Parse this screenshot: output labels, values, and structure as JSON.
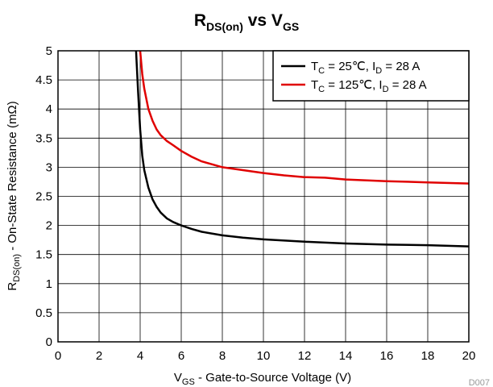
{
  "chart_data": {
    "type": "line",
    "title": {
      "main": "R",
      "main_sub": "DS(on)",
      "mid": " vs V",
      "mid_sub": "GS"
    },
    "xlabel": {
      "main": "V",
      "sub": "GS",
      "rest": " - Gate-to-Source Voltage (V)"
    },
    "ylabel": {
      "main": "R",
      "sub": "DS(on)",
      "rest": " - On-State Resistance (mΩ)"
    },
    "xlim": [
      0,
      20
    ],
    "ylim": [
      0,
      5
    ],
    "xticks": [
      "0",
      "2",
      "4",
      "6",
      "8",
      "10",
      "12",
      "14",
      "16",
      "18",
      "20"
    ],
    "yticks": [
      "0",
      "0.5",
      "1",
      "1.5",
      "2",
      "2.5",
      "3",
      "3.5",
      "4",
      "4.5",
      "5"
    ],
    "grid": true,
    "legend_position": "top-right",
    "figure_code": "D007",
    "series": [
      {
        "color": "#000000",
        "legend": {
          "t": "T",
          "t_sub": "C",
          "mid": " = 25℃, I",
          "i_sub": "D",
          "end": " = 28 A"
        },
        "x": [
          3.8,
          3.9,
          4.0,
          4.1,
          4.2,
          4.4,
          4.6,
          4.8,
          5.0,
          5.3,
          5.6,
          6.0,
          6.5,
          7.0,
          8.0,
          9.0,
          10.0,
          12.0,
          14.0,
          16.0,
          18.0,
          20.0
        ],
        "y": [
          5.0,
          4.3,
          3.65,
          3.2,
          2.95,
          2.65,
          2.45,
          2.32,
          2.22,
          2.12,
          2.06,
          2.0,
          1.94,
          1.89,
          1.83,
          1.79,
          1.76,
          1.72,
          1.69,
          1.67,
          1.66,
          1.64
        ]
      },
      {
        "color": "#e00000",
        "legend": {
          "t": "T",
          "t_sub": "C",
          "mid": " = 125℃, I",
          "i_sub": "D",
          "end": " = 28 A"
        },
        "x": [
          4.0,
          4.1,
          4.2,
          4.4,
          4.6,
          4.8,
          5.0,
          5.3,
          5.6,
          6.0,
          6.5,
          7.0,
          7.5,
          8.0,
          9.0,
          10.0,
          11.0,
          12.0,
          13.0,
          14.0,
          16.0,
          18.0,
          20.0
        ],
        "y": [
          5.0,
          4.6,
          4.35,
          4.0,
          3.8,
          3.65,
          3.55,
          3.45,
          3.38,
          3.28,
          3.18,
          3.1,
          3.05,
          3.0,
          2.95,
          2.9,
          2.86,
          2.83,
          2.82,
          2.79,
          2.76,
          2.74,
          2.72
        ]
      }
    ]
  }
}
